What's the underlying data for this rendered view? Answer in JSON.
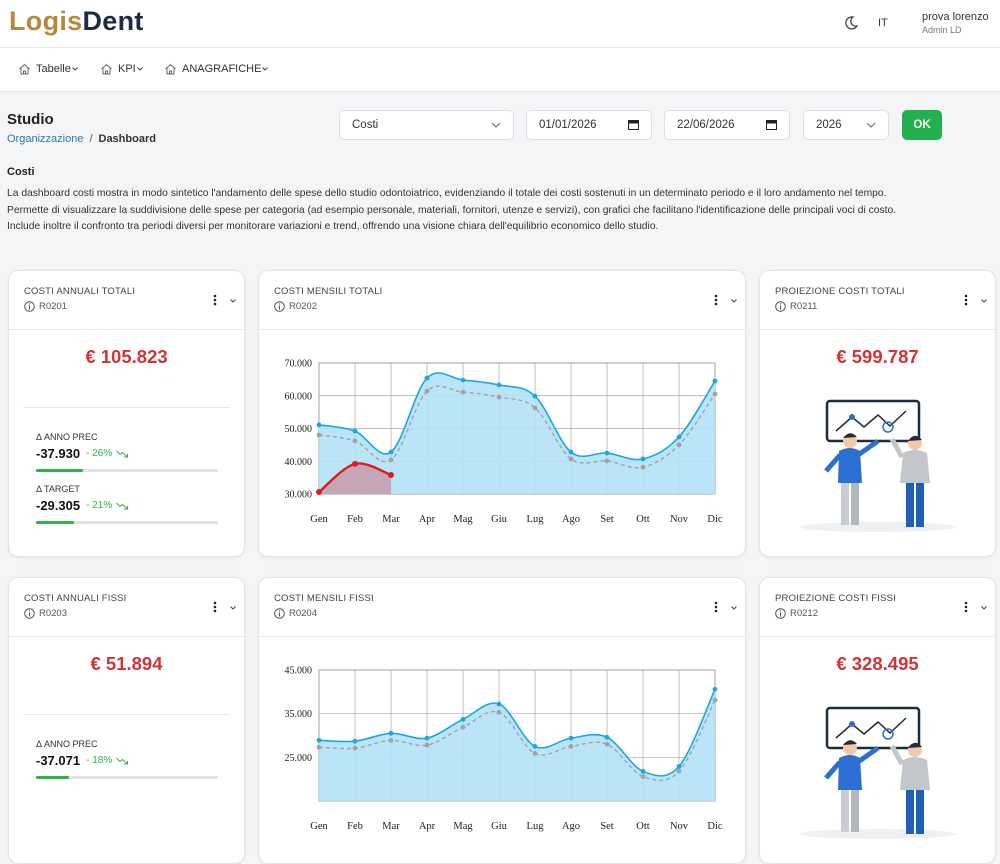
{
  "header": {
    "logo": {
      "first": "Logis",
      "second": "Dent"
    },
    "language": "IT",
    "user_name": "prova lorenzo",
    "user_role": "Admin LD"
  },
  "nav": {
    "items": [
      "Tabelle",
      "KPI",
      "ANAGRAFICHE"
    ]
  },
  "page": {
    "title": "Studio",
    "breadcrumb": {
      "parent": "Organizzazione",
      "separator": "/",
      "current": "Dashboard"
    }
  },
  "filters": {
    "category": "Costi",
    "date_from": "01/01/2026",
    "date_to": "22/06/2026",
    "year": "2026",
    "submit": "OK"
  },
  "section": {
    "title": "Costi",
    "description": [
      "La dashboard costi mostra in modo sintetico l'andamento delle spese dello studio odontoiatrico, evidenziando il totale dei costi sostenuti in un determinato periodo e il loro andamento nel tempo.",
      "Permette di visualizzare la suddivisione delle spese per categoria (ad esempio personale, materiali, fornitori, utenze e servizi), con grafici che facilitano l'identificazione delle principali voci di costo.",
      "Include inoltre il confronto tra periodi diversi per monitorare variazioni e trend, offrendo una visione chiara dell'equilibrio economico dello studio."
    ]
  },
  "cards": [
    {
      "title": "COSTI ANNUALI TOTALI",
      "code": "R0201",
      "value": "€ 105.823",
      "metrics": [
        {
          "label": "Δ ANNO PREC",
          "value": "-37.930",
          "change": {
            "value": -26,
            "label": "- 26%"
          }
        },
        {
          "label": "Δ TARGET",
          "value": "-29.305",
          "change": {
            "value": -21,
            "label": "- 21%"
          }
        }
      ]
    },
    {
      "title": "COSTI MENSILI TOTALI",
      "code": "R0202",
      "chart": {
        "type": "line",
        "categories": [
          "Gen",
          "Feb",
          "Mar",
          "Apr",
          "Mag",
          "Giu",
          "Lug",
          "Ago",
          "Set",
          "Ott",
          "Nov",
          "Dic"
        ],
        "series": [
          {
            "color": "#1ca7e0",
            "fill": "#b3e2f7",
            "values": [
              51100,
              49200,
              42800,
              65400,
              64800,
              63300,
              59900,
              42800,
              42500,
              40700,
              47400,
              64500
            ]
          },
          {
            "color": "#a3a3a3",
            "dashed": true,
            "values": [
              48000,
              46200,
              40400,
              61400,
              61100,
              59600,
              56300,
              40700,
              40100,
              38200,
              45000,
              60500
            ]
          },
          {
            "color": "#e01b1b",
            "fill": "#c69fae",
            "values": [
              30600,
              39200,
              35800,
              null,
              null,
              null,
              null,
              null,
              null,
              null,
              null,
              null
            ]
          }
        ],
        "ylim": [
          30000,
          70000
        ],
        "yticks": [
          {
            "value": 30000,
            "label": "30.000"
          },
          {
            "value": 40000,
            "label": "40.000"
          },
          {
            "value": 50000,
            "label": "50.000"
          },
          {
            "value": 60000,
            "label": "60.000"
          },
          {
            "value": 70000,
            "label": "70.000"
          }
        ],
        "grid": true
      }
    },
    {
      "title": "PROIEZIONE COSTI TOTALI",
      "code": "R0211",
      "value": "€ 599.787"
    },
    {
      "title": "COSTI ANNUALI FISSI",
      "code": "R0203",
      "value": "€ 51.894",
      "metrics": [
        {
          "label": "Δ ANNO PREC",
          "value": "-37.071",
          "change": {
            "value": -18,
            "label": "- 18%"
          }
        }
      ]
    },
    {
      "title": "COSTI MENSILI FISSI",
      "code": "R0204",
      "chart": {
        "type": "line",
        "categories": [
          "Gen",
          "Feb",
          "Mar",
          "Apr",
          "Mag",
          "Giu",
          "Lug",
          "Ago",
          "Set",
          "Ott",
          "Nov",
          "Dic"
        ],
        "series": [
          {
            "color": "#1ca7e0",
            "fill": "#b3e2f7",
            "values": [
              28900,
              28700,
              30500,
              29400,
              33700,
              37200,
              27500,
              29400,
              29600,
              21800,
              22900,
              40600
            ]
          },
          {
            "color": "#a3a3a3",
            "dashed": true,
            "values": [
              27300,
              27100,
              28900,
              27800,
              31900,
              35300,
              25900,
              27500,
              28000,
              20600,
              21800,
              38100
            ]
          }
        ],
        "ylim": [
          15000,
          45000
        ],
        "yticks": [
          {
            "value": 25000,
            "label": "25.000"
          },
          {
            "value": 35000,
            "label": "35.000"
          },
          {
            "value": 45000,
            "label": "45.000"
          }
        ],
        "grid": true
      }
    },
    {
      "title": "PROIEZIONE COSTI FISSI",
      "code": "R0212",
      "value": "€ 328.495"
    }
  ]
}
